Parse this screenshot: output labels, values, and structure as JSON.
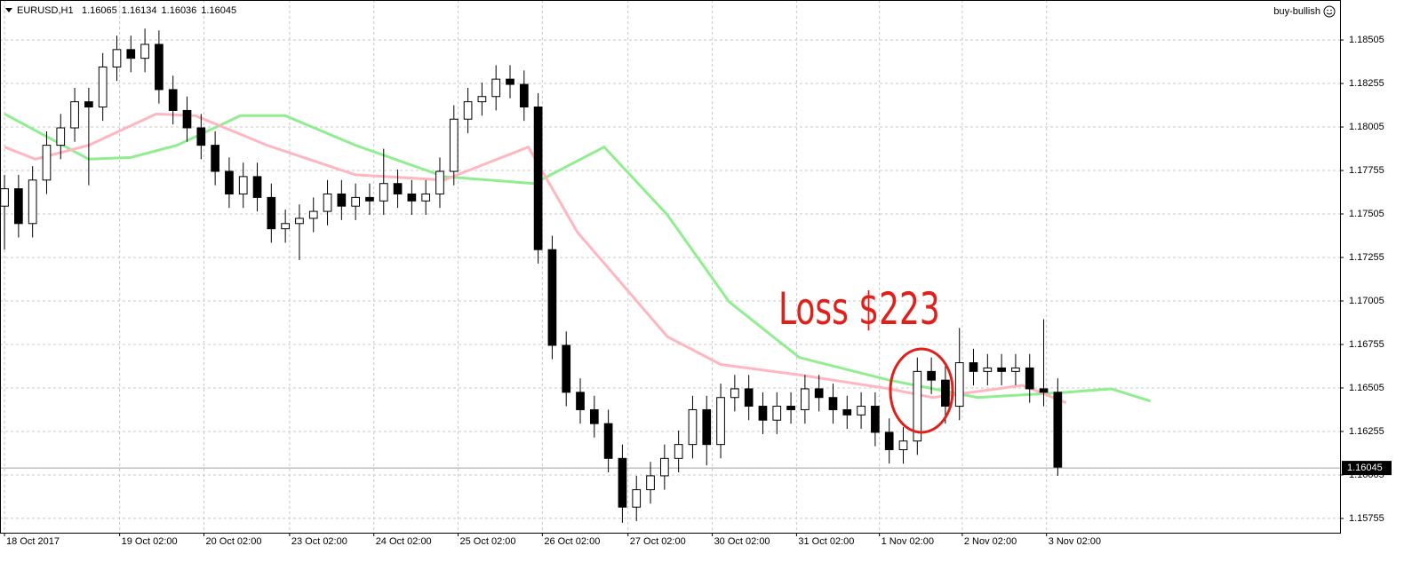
{
  "chart_data": {
    "type": "candlestick",
    "title": "EURUSD,H1",
    "header_values": [
      1.16065,
      1.16134,
      1.16036,
      1.16045
    ],
    "badge": "buy-bullish",
    "annotation": "Loss $223",
    "current_price": 1.16045,
    "up_color": "#ffffff",
    "down_color": "#000000",
    "ylim": [
      1.15673,
      1.18735
    ],
    "yticks": [
      1.18505,
      1.18255,
      1.18005,
      1.17755,
      1.17505,
      1.17255,
      1.17005,
      1.16755,
      1.16505,
      1.16255,
      1.16005,
      1.15755
    ],
    "xlim": [
      -0.32,
      95.1
    ],
    "xticks": [
      {
        "value": 0,
        "label": "18 Oct 2017"
      },
      {
        "value": 8.2,
        "label": "19 Oct 02:00"
      },
      {
        "value": 14.2,
        "label": "20 Oct 02:00"
      },
      {
        "value": 20.3,
        "label": "23 Oct 02:00"
      },
      {
        "value": 26.3,
        "label": "24 Oct 02:00"
      },
      {
        "value": 32.3,
        "label": "25 Oct 02:00"
      },
      {
        "value": 38.3,
        "label": "26 Oct 02:00"
      },
      {
        "value": 44.4,
        "label": "27 Oct 02:00"
      },
      {
        "value": 50.4,
        "label": "30 Oct 02:00"
      },
      {
        "value": 56.4,
        "label": "31 Oct 02:00"
      },
      {
        "value": 62.3,
        "label": "1 Nov 02:00"
      },
      {
        "value": 68.2,
        "label": "2 Nov 02:00"
      },
      {
        "value": 74.2,
        "label": "3 Nov 02:00"
      }
    ],
    "grid": true,
    "open": [
      1.1755,
      1.1765,
      1.1745,
      1.177,
      1.179,
      1.18,
      1.1815,
      1.1812,
      1.1835,
      1.1845,
      1.184,
      1.1848,
      1.1822,
      1.181,
      1.18,
      1.179,
      1.1775,
      1.1762,
      1.1772,
      1.176,
      1.1742,
      1.1745,
      1.1748,
      1.1752,
      1.1762,
      1.1755,
      1.176,
      1.1758,
      1.1768,
      1.1762,
      1.1758,
      1.1762,
      1.1775,
      1.1805,
      1.1815,
      1.1818,
      1.1828,
      1.1825,
      1.1812,
      1.173,
      1.1675,
      1.1648,
      1.1638,
      1.163,
      1.161,
      1.1582,
      1.1592,
      1.16,
      1.161,
      1.1618,
      1.1638,
      1.1618,
      1.1645,
      1.165,
      1.164,
      1.1632,
      1.164,
      1.1638,
      1.165,
      1.1645,
      1.1638,
      1.1635,
      1.164,
      1.1625,
      1.1615,
      1.162,
      1.166,
      1.1655,
      1.164,
      1.1665,
      1.166,
      1.1662,
      1.166,
      1.1662,
      1.165,
      1.1648
    ],
    "high": [
      1.1773,
      1.1773,
      1.1778,
      1.1798,
      1.1808,
      1.1823,
      1.1823,
      1.1843,
      1.1853,
      1.1853,
      1.1857,
      1.1856,
      1.183,
      1.1818,
      1.1808,
      1.1798,
      1.1783,
      1.178,
      1.178,
      1.1768,
      1.1753,
      1.1756,
      1.176,
      1.177,
      1.177,
      1.1768,
      1.1768,
      1.1788,
      1.1776,
      1.177,
      1.177,
      1.1783,
      1.1813,
      1.1823,
      1.1826,
      1.1836,
      1.1836,
      1.1833,
      1.182,
      1.1738,
      1.1683,
      1.1656,
      1.1646,
      1.1638,
      1.1618,
      1.16,
      1.1608,
      1.1618,
      1.1626,
      1.1646,
      1.1646,
      1.1653,
      1.1658,
      1.1658,
      1.1648,
      1.1648,
      1.1648,
      1.1658,
      1.1658,
      1.1653,
      1.1646,
      1.1648,
      1.1648,
      1.1633,
      1.1628,
      1.1668,
      1.1668,
      1.1663,
      1.1685,
      1.1673,
      1.167,
      1.167,
      1.167,
      1.167,
      1.169,
      1.1656
    ],
    "low": [
      1.173,
      1.1737,
      1.1737,
      1.1762,
      1.1782,
      1.1792,
      1.1767,
      1.1804,
      1.1827,
      1.1832,
      1.1832,
      1.1814,
      1.1802,
      1.1792,
      1.1782,
      1.1767,
      1.1754,
      1.1754,
      1.1752,
      1.1734,
      1.1734,
      1.1724,
      1.174,
      1.1744,
      1.1747,
      1.1747,
      1.175,
      1.175,
      1.1754,
      1.175,
      1.175,
      1.1754,
      1.1767,
      1.1797,
      1.1807,
      1.181,
      1.1817,
      1.1804,
      1.1722,
      1.1667,
      1.164,
      1.163,
      1.1622,
      1.1602,
      1.1573,
      1.1574,
      1.1584,
      1.1592,
      1.1602,
      1.161,
      1.1606,
      1.161,
      1.1637,
      1.1632,
      1.1624,
      1.1624,
      1.163,
      1.163,
      1.1637,
      1.163,
      1.1627,
      1.1627,
      1.1617,
      1.1607,
      1.1607,
      1.1612,
      1.1647,
      1.163,
      1.1632,
      1.1652,
      1.1652,
      1.1652,
      1.1652,
      1.1642,
      1.164,
      1.16
    ],
    "close": [
      1.1765,
      1.1745,
      1.177,
      1.179,
      1.18,
      1.1815,
      1.1812,
      1.1835,
      1.1845,
      1.184,
      1.1848,
      1.1822,
      1.181,
      1.18,
      1.179,
      1.1775,
      1.1762,
      1.1772,
      1.176,
      1.1742,
      1.1745,
      1.1748,
      1.1752,
      1.1762,
      1.1755,
      1.176,
      1.1758,
      1.1768,
      1.1762,
      1.1758,
      1.1762,
      1.1775,
      1.1805,
      1.1815,
      1.1818,
      1.1828,
      1.1825,
      1.1812,
      1.173,
      1.1675,
      1.1648,
      1.1638,
      1.163,
      1.161,
      1.1582,
      1.1592,
      1.16,
      1.161,
      1.1618,
      1.1638,
      1.1618,
      1.1645,
      1.165,
      1.164,
      1.1632,
      1.164,
      1.1638,
      1.165,
      1.1645,
      1.1638,
      1.1635,
      1.164,
      1.1625,
      1.1615,
      1.162,
      1.166,
      1.1655,
      1.164,
      1.1665,
      1.166,
      1.1662,
      1.166,
      1.1662,
      1.165,
      1.1648,
      1.1605
    ],
    "series": [
      {
        "color": "#90ee90",
        "x": [
          0,
          6,
          9,
          12.3,
          16.8,
          20,
          25,
          31.3,
          37.7,
          42.7,
          47.2,
          51.6,
          56.6,
          63,
          69.3,
          75.6,
          78.8,
          81.6
        ],
        "values": [
          1.1808,
          1.1782,
          1.1783,
          1.179,
          1.1807,
          1.1807,
          1.179,
          1.1772,
          1.1768,
          1.1789,
          1.175,
          1.17,
          1.1668,
          1.1655,
          1.1645,
          1.1648,
          1.165,
          1.1643
        ]
      },
      {
        "color": "#ffb6c1",
        "x": [
          0,
          2.2,
          6,
          10.8,
          13.6,
          18.7,
          25,
          31.3,
          37.3,
          40.8,
          44,
          47.2,
          51,
          56.6,
          63,
          66.1,
          72.5,
          75.6
        ],
        "values": [
          1.1789,
          1.1782,
          1.179,
          1.1808,
          1.1807,
          1.179,
          1.1773,
          1.177,
          1.1789,
          1.174,
          1.171,
          1.168,
          1.1664,
          1.1658,
          1.165,
          1.1645,
          1.1652,
          1.1642
        ]
      }
    ]
  }
}
